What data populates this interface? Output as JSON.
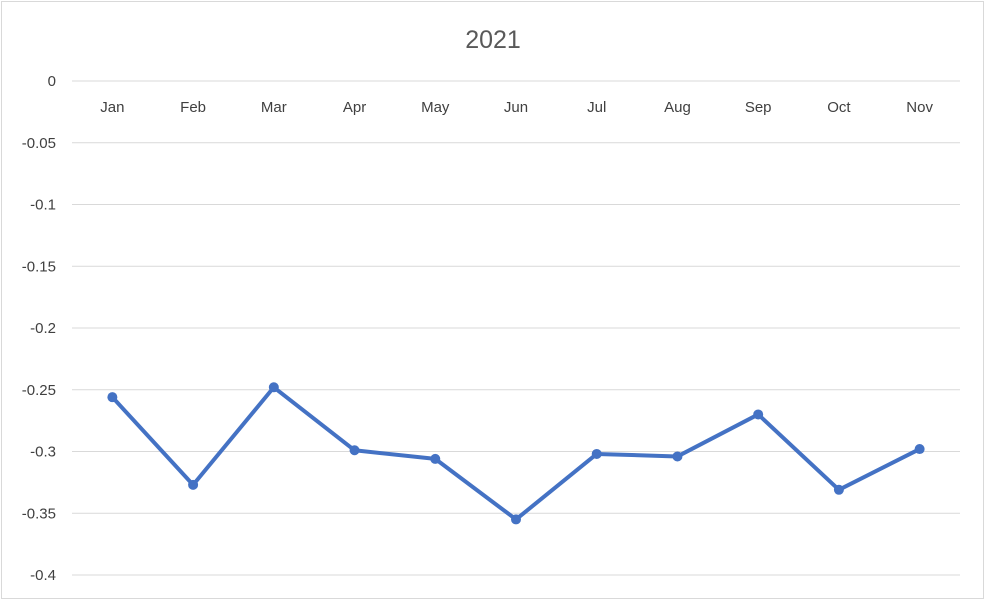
{
  "chart_data": {
    "type": "line",
    "title": "2021",
    "categories": [
      "Jan",
      "Feb",
      "Mar",
      "Apr",
      "May",
      "Jun",
      "Jul",
      "Aug",
      "Sep",
      "Oct",
      "Nov"
    ],
    "series": [
      {
        "values": [
          -0.256,
          -0.327,
          -0.248,
          -0.299,
          -0.306,
          -0.355,
          -0.302,
          -0.304,
          -0.27,
          -0.331,
          -0.298
        ]
      }
    ],
    "ylim": [
      -0.4,
      0
    ],
    "yticks": [
      0,
      -0.05,
      -0.1,
      -0.15,
      -0.2,
      -0.25,
      -0.3,
      -0.35,
      -0.4
    ],
    "ytick_labels": [
      "0",
      "-0.05",
      "-0.1",
      "-0.15",
      "-0.2",
      "-0.25",
      "-0.3",
      "-0.35",
      "-0.4"
    ],
    "xaxis_position": "top",
    "grid": true,
    "series_color": "#4472c4",
    "xlabel": "",
    "ylabel": ""
  }
}
